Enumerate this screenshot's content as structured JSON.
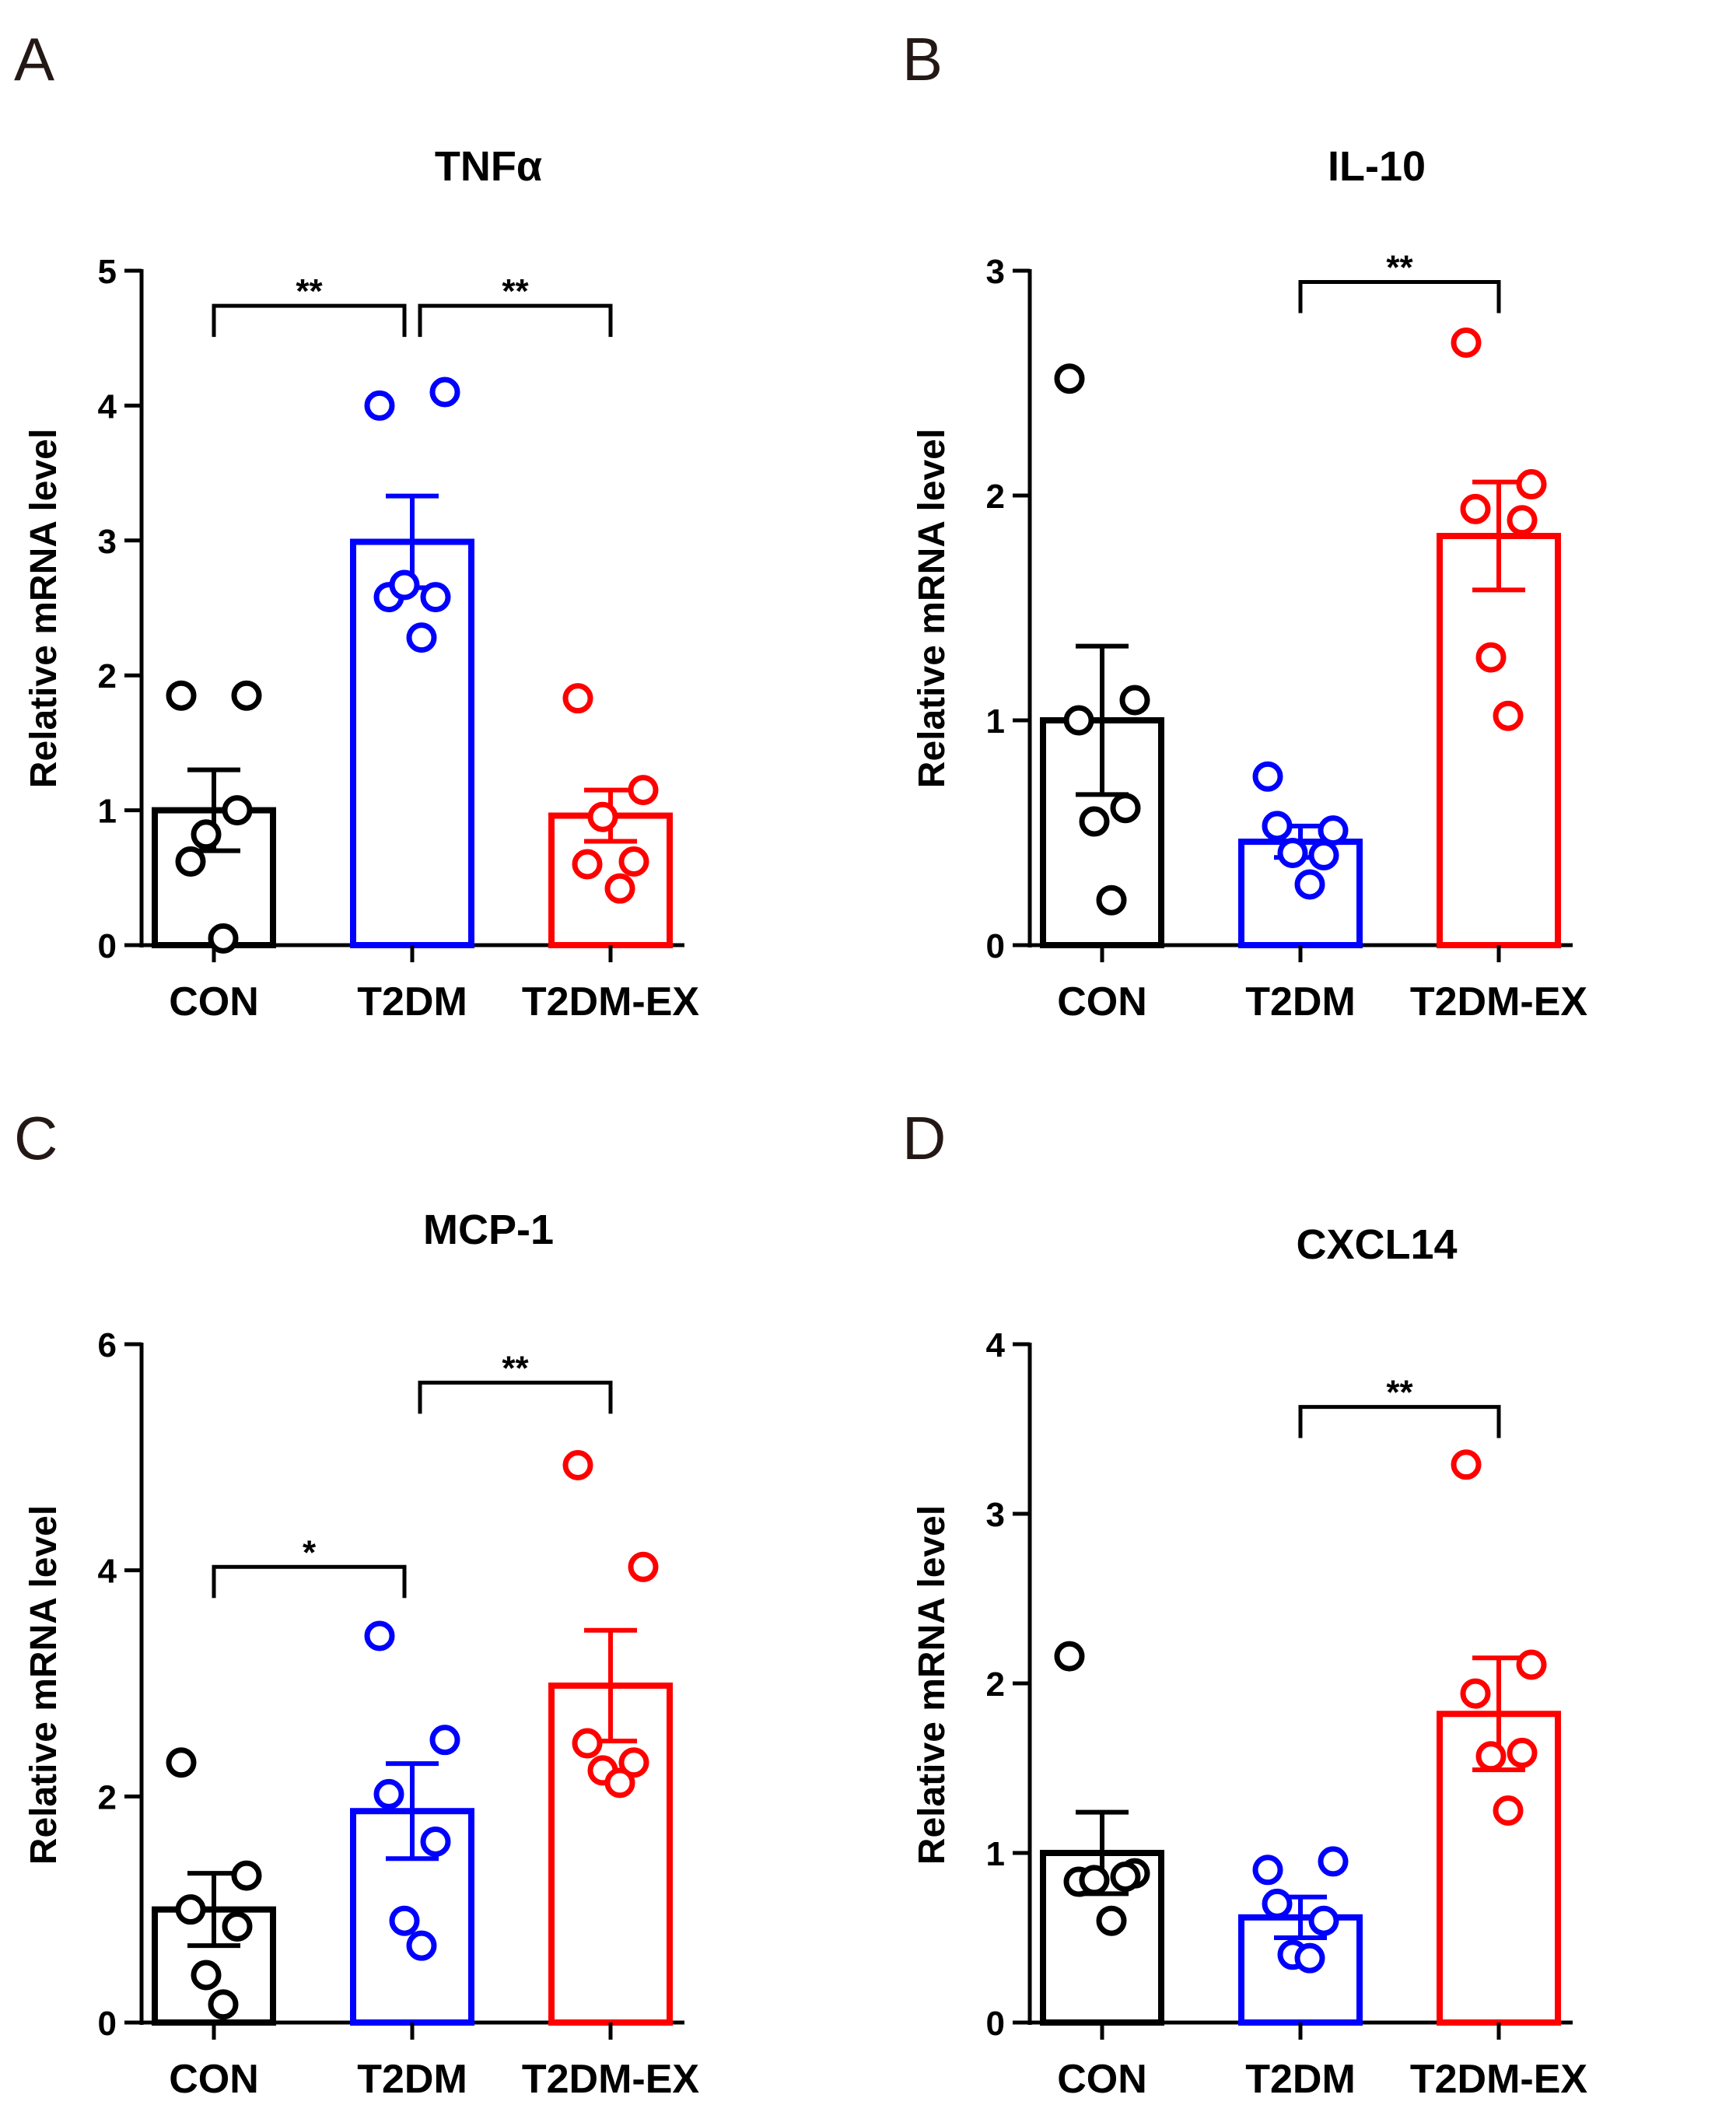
{
  "chart_data": [
    {
      "panel": "A",
      "type": "bar",
      "title": "TNFα",
      "xlabel": "",
      "ylabel": "Relative mRNA level",
      "ylim": [
        0,
        5
      ],
      "yticks": [
        "0",
        "1",
        "2",
        "3",
        "4",
        "5"
      ],
      "categories": [
        "CON",
        "T2DM",
        "T2DM-EX"
      ],
      "colors": [
        "#000000",
        "#0000ff",
        "#ff0000"
      ],
      "means": [
        1.0,
        2.99,
        0.96
      ],
      "sem": [
        0.3,
        0.34,
        0.19
      ],
      "points": [
        [
          1.85,
          1.85,
          0.62,
          1.0,
          0.82,
          0.05
        ],
        [
          4.0,
          4.1,
          2.58,
          2.58,
          2.67,
          2.28
        ],
        [
          1.83,
          1.15,
          0.6,
          0.62,
          0.95,
          0.42
        ]
      ],
      "significance": [
        {
          "from": 0,
          "to": 1,
          "label": "**",
          "y": 4.74
        },
        {
          "from": 1,
          "to": 2,
          "label": "**",
          "y": 4.74
        }
      ]
    },
    {
      "panel": "B",
      "type": "bar",
      "title": "IL-10",
      "xlabel": "",
      "ylabel": "Relative mRNA level",
      "ylim": [
        0,
        3
      ],
      "yticks": [
        "0",
        "1",
        "2",
        "3"
      ],
      "categories": [
        "CON",
        "T2DM",
        "T2DM-EX"
      ],
      "colors": [
        "#000000",
        "#0000ff",
        "#ff0000"
      ],
      "means": [
        1.0,
        0.46,
        1.82
      ],
      "sem": [
        0.33,
        0.07,
        0.24
      ],
      "points": [
        [
          2.52,
          1.09,
          1.0,
          0.61,
          0.55,
          0.2
        ],
        [
          0.75,
          0.51,
          0.53,
          0.4,
          0.41,
          0.27
        ],
        [
          2.68,
          2.05,
          1.94,
          1.89,
          1.28,
          1.02
        ]
      ],
      "significance": [
        {
          "from": 1,
          "to": 2,
          "label": "**",
          "y": 2.95
        }
      ]
    },
    {
      "panel": "C",
      "type": "bar",
      "title": "MCP-1",
      "xlabel": "",
      "ylabel": "Relative mRNA level",
      "ylim": [
        0,
        6
      ],
      "yticks": [
        "0",
        "2",
        "4",
        "6"
      ],
      "categories": [
        "CON",
        "T2DM",
        "T2DM-EX"
      ],
      "colors": [
        "#000000",
        "#0000ff",
        "#ff0000"
      ],
      "means": [
        1.0,
        1.87,
        2.98
      ],
      "sem": [
        0.32,
        0.42,
        0.49
      ],
      "points": [
        [
          2.3,
          1.3,
          1.0,
          0.85,
          0.42,
          0.16
        ],
        [
          3.42,
          2.5,
          2.02,
          1.6,
          0.9,
          0.68
        ],
        [
          4.93,
          4.03,
          2.47,
          2.3,
          2.23,
          2.12
        ]
      ],
      "significance": [
        {
          "from": 0,
          "to": 1,
          "label": "*",
          "y": 4.03
        },
        {
          "from": 1,
          "to": 2,
          "label": "**",
          "y": 5.66
        }
      ]
    },
    {
      "panel": "D",
      "type": "bar",
      "title": "CXCL14",
      "xlabel": "",
      "ylabel": "Relative mRNA level",
      "ylim": [
        0,
        4
      ],
      "yticks": [
        "0",
        "1",
        "2",
        "3",
        "4"
      ],
      "categories": [
        "CON",
        "T2DM",
        "T2DM-EX"
      ],
      "colors": [
        "#000000",
        "#0000ff",
        "#ff0000"
      ],
      "means": [
        1.0,
        0.62,
        1.82
      ],
      "sem": [
        0.24,
        0.12,
        0.33
      ],
      "points": [
        [
          2.16,
          0.88,
          0.83,
          0.86,
          0.84,
          0.6
        ],
        [
          0.9,
          0.95,
          0.7,
          0.6,
          0.4,
          0.38
        ],
        [
          3.29,
          2.11,
          1.94,
          1.59,
          1.57,
          1.25
        ]
      ],
      "significance": [
        {
          "from": 1,
          "to": 2,
          "label": "**",
          "y": 3.63
        }
      ]
    }
  ]
}
